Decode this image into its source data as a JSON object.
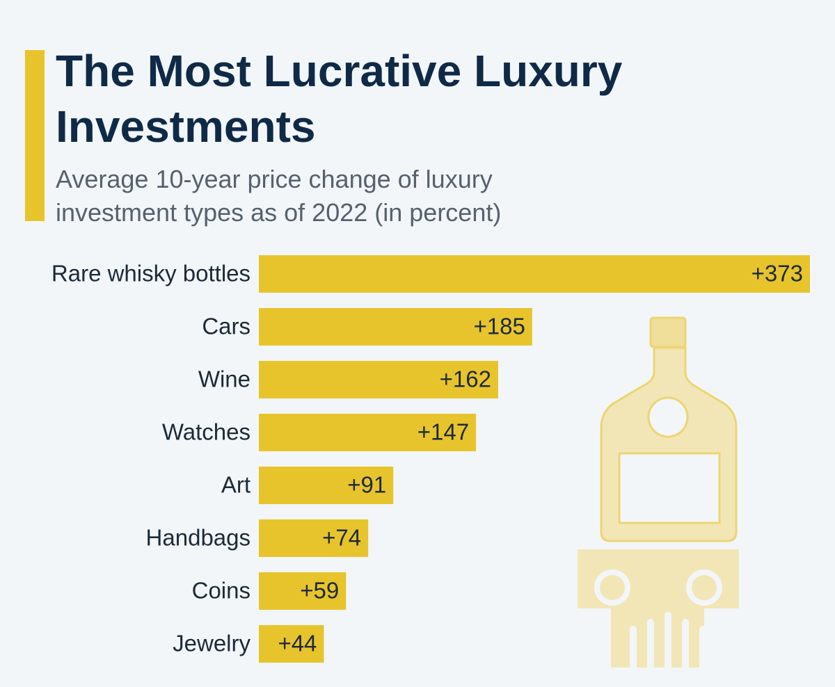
{
  "chart_data": {
    "type": "bar",
    "orientation": "horizontal",
    "title": "The Most Lucrative Luxury Investments",
    "subtitle": "Average 10-year price change of luxury investment types as of 2022 (in percent)",
    "categories": [
      "Rare whisky bottles",
      "Cars",
      "Wine",
      "Watches",
      "Art",
      "Handbags",
      "Coins",
      "Jewelry"
    ],
    "values": [
      373,
      185,
      162,
      147,
      91,
      74,
      59,
      44
    ],
    "value_labels": [
      "+373",
      "+185",
      "+162",
      "+147",
      "+91",
      "+74",
      "+59",
      "+44"
    ],
    "color": "#e8c42c"
  }
}
